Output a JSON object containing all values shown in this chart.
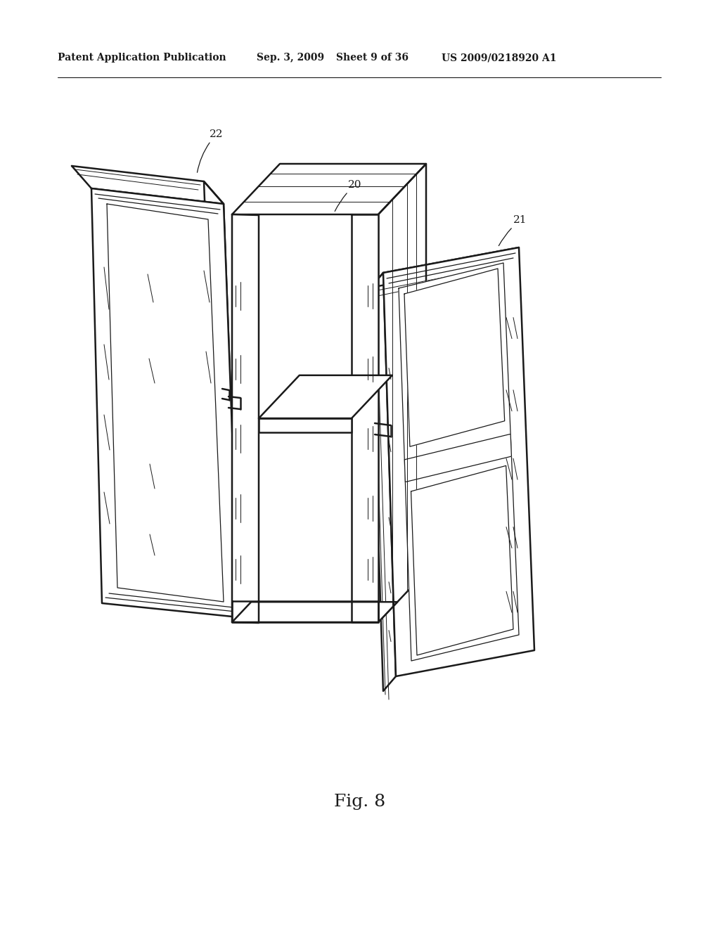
{
  "background_color": "#ffffff",
  "line_color": "#1a1a1a",
  "lw_main": 1.8,
  "lw_thin": 0.9,
  "lw_grain": 0.7,
  "header_text": "Patent Application Publication",
  "header_date": "Sep. 3, 2009",
  "header_sheet": "Sheet 9 of 36",
  "header_patent": "US 2009/0218920 A1",
  "figure_label": "Fig. 8",
  "label_20": "20",
  "label_21": "21",
  "label_22": "22"
}
